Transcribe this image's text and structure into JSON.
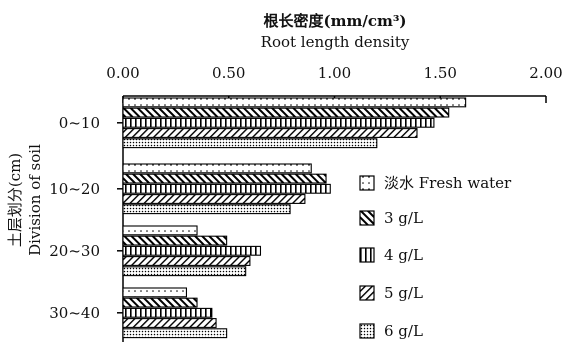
{
  "chart_data": {
    "type": "bar",
    "orientation": "horizontal",
    "title_cn": "根长密度(mm/cm³)",
    "title_en": "Root length density",
    "ylabel_cn": "土层划分(cm)",
    "ylabel_en": "Division of soil",
    "xlim": [
      0,
      2
    ],
    "x_ticks": [
      "0.00",
      "0.50",
      "1.00",
      "1.50",
      "2.00"
    ],
    "x_tick_values": [
      0,
      0.5,
      1.0,
      1.5,
      2.0
    ],
    "x_axis_position": "top",
    "grid": false,
    "legend_position": "right",
    "categories": [
      "0~10",
      "10~20",
      "20~30",
      "30~40"
    ],
    "series": [
      {
        "name": "淡水 Fresh water",
        "pattern": "dots",
        "values": [
          1.62,
          0.89,
          0.35,
          0.3
        ]
      },
      {
        "name": "3 g/L",
        "pattern": "backslash",
        "values": [
          1.54,
          0.96,
          0.49,
          0.35
        ]
      },
      {
        "name": "4 g/L",
        "pattern": "vertical",
        "values": [
          1.47,
          0.98,
          0.65,
          0.42
        ]
      },
      {
        "name": "5 g/L",
        "pattern": "slash",
        "values": [
          1.39,
          0.86,
          0.6,
          0.44
        ]
      },
      {
        "name": "6 g/L",
        "pattern": "dense-dots",
        "values": [
          1.2,
          0.79,
          0.58,
          0.49
        ]
      }
    ]
  }
}
